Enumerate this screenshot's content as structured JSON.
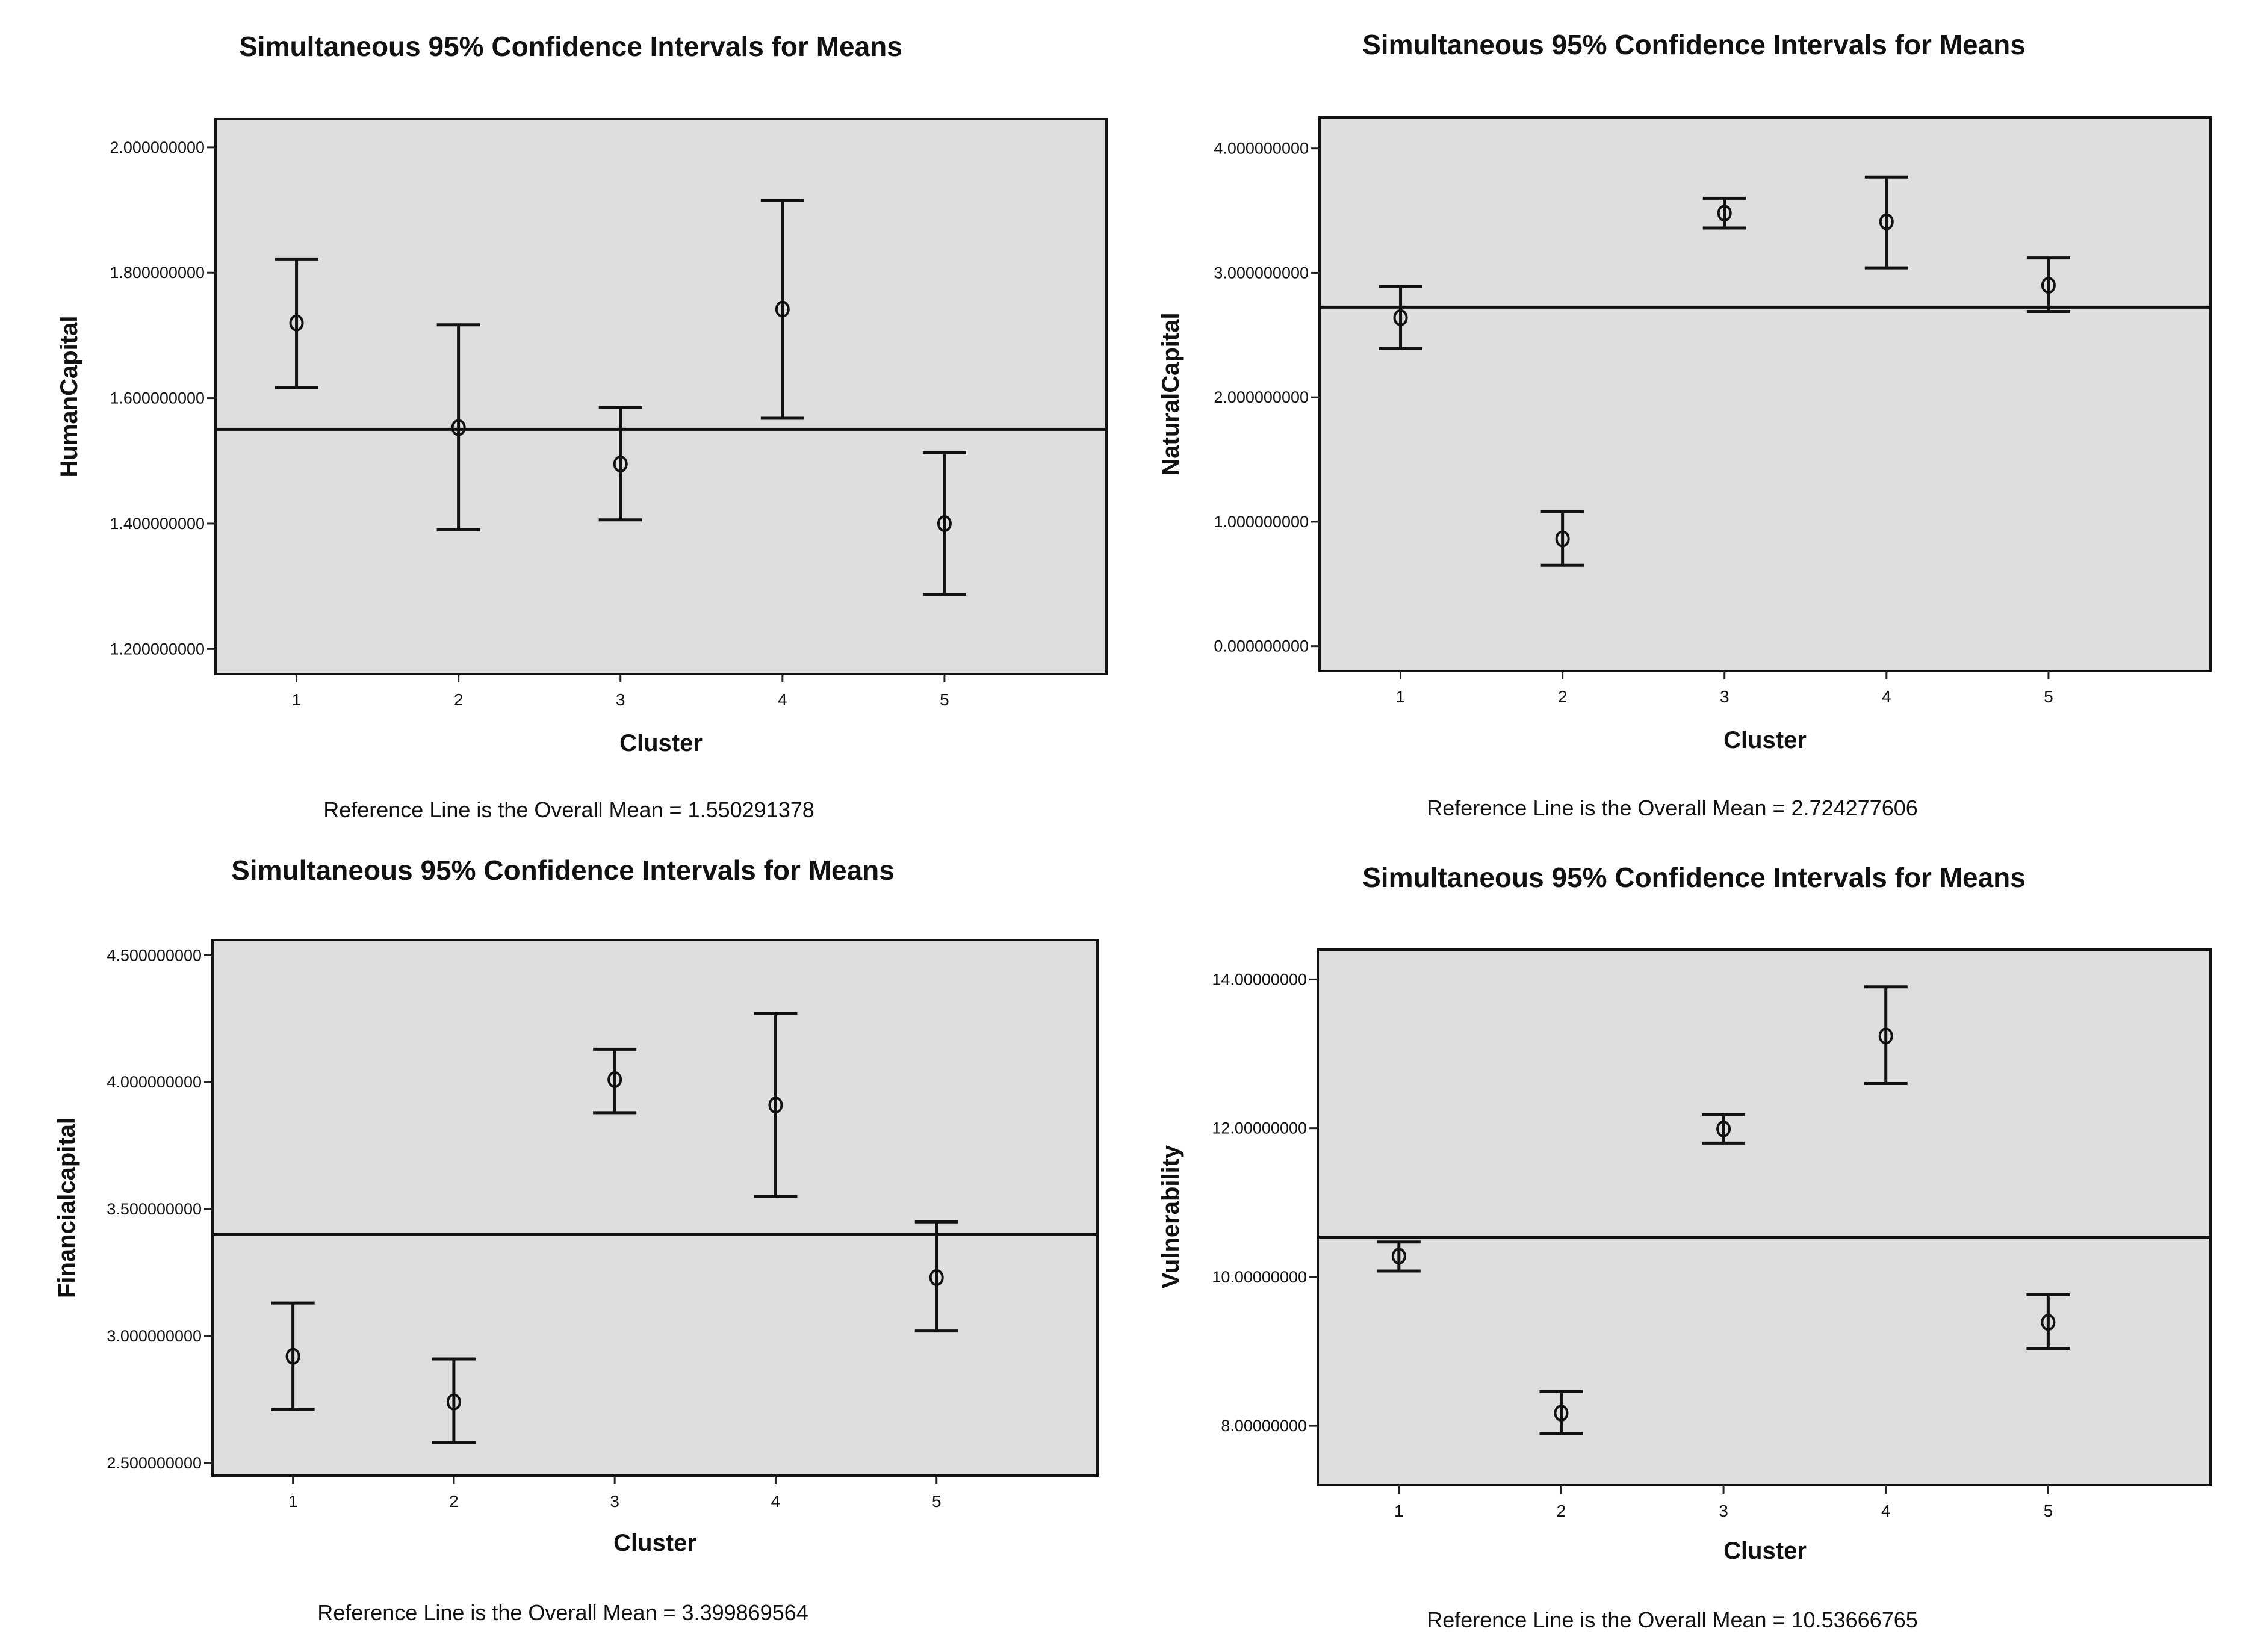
{
  "colors": {
    "plot_background": "#dedede",
    "ink": "#111111",
    "page_background": "#ffffff"
  },
  "chart_data": [
    {
      "type": "errorbar",
      "title": "Simultaneous 95% Confidence Intervals for Means",
      "xlabel": "Cluster",
      "ylabel": "HumanCapital",
      "categories": [
        "1",
        "2",
        "3",
        "4",
        "5"
      ],
      "means": [
        1.72,
        1.553,
        1.495,
        1.742,
        1.4
      ],
      "lower": [
        1.617,
        1.39,
        1.406,
        1.568,
        1.287
      ],
      "upper": [
        1.822,
        1.717,
        1.585,
        1.915,
        1.513
      ],
      "ylim": [
        1.16,
        2.045
      ],
      "yticks": [
        1.2,
        1.4,
        1.6,
        1.8,
        2.0
      ],
      "ytick_labels": [
        "1.200000000",
        "1.400000000",
        "1.600000000",
        "1.800000000",
        "2.000000000"
      ],
      "reference_line": 1.550291378,
      "note": "Reference Line is the Overall Mean = 1.550291378"
    },
    {
      "type": "errorbar",
      "title": "Simultaneous 95% Confidence Intervals for Means",
      "xlabel": "Cluster",
      "ylabel": "NaturalCapital",
      "categories": [
        "1",
        "2",
        "3",
        "4",
        "5"
      ],
      "means": [
        2.64,
        0.862,
        3.48,
        3.41,
        2.9
      ],
      "lower": [
        2.39,
        0.65,
        3.36,
        3.04,
        2.69
      ],
      "upper": [
        2.89,
        1.08,
        3.6,
        3.77,
        3.12
      ],
      "ylim": [
        -0.2,
        4.25
      ],
      "yticks": [
        0,
        1,
        2,
        3,
        4
      ],
      "ytick_labels": [
        "0.000000000",
        "1.000000000",
        "2.000000000",
        "3.000000000",
        "4.000000000"
      ],
      "reference_line": 2.724277606,
      "note": "Reference Line is the Overall Mean = 2.724277606"
    },
    {
      "type": "errorbar",
      "title": "Simultaneous 95% Confidence Intervals for Means",
      "xlabel": "Cluster",
      "ylabel": "Financialcapital",
      "categories": [
        "1",
        "2",
        "3",
        "4",
        "5"
      ],
      "means": [
        2.92,
        2.74,
        4.01,
        3.91,
        3.23
      ],
      "lower": [
        2.71,
        2.58,
        3.88,
        3.55,
        3.02
      ],
      "upper": [
        3.13,
        2.91,
        4.13,
        4.27,
        3.45
      ],
      "ylim": [
        2.45,
        4.56
      ],
      "yticks": [
        2.5,
        3.0,
        3.5,
        4.0,
        4.5
      ],
      "ytick_labels": [
        "2.500000000",
        "3.000000000",
        "3.500000000",
        "4.000000000",
        "4.500000000"
      ],
      "reference_line": 3.399869564,
      "note": "Reference Line is the Overall Mean = 3.399869564"
    },
    {
      "type": "errorbar",
      "title": "Simultaneous 95% Confidence Intervals for Means",
      "xlabel": "Cluster",
      "ylabel": "Vulnerability",
      "categories": [
        "1",
        "2",
        "3",
        "4",
        "5"
      ],
      "means": [
        10.28,
        8.17,
        11.99,
        13.24,
        9.39
      ],
      "lower": [
        10.08,
        7.9,
        11.8,
        12.6,
        9.04
      ],
      "upper": [
        10.47,
        8.46,
        12.18,
        13.9,
        9.76
      ],
      "ylim": [
        7.2,
        14.4
      ],
      "yticks": [
        8,
        10,
        12,
        14
      ],
      "ytick_labels": [
        "8.00000000",
        "10.00000000",
        "12.00000000",
        "14.00000000"
      ],
      "reference_line": 10.53666765,
      "note": "Reference Line is the Overall Mean = 10.53666765"
    }
  ]
}
